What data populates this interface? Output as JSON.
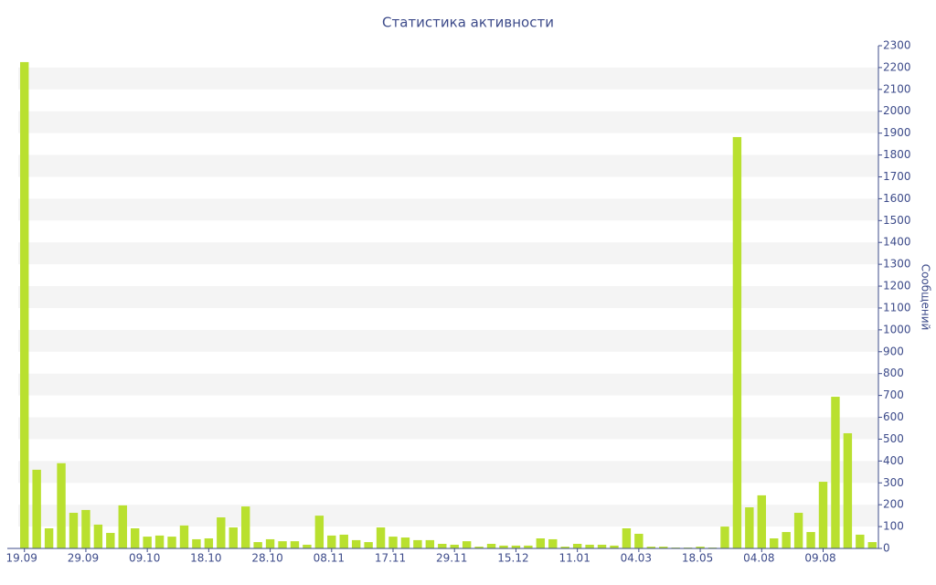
{
  "chart_data": {
    "type": "bar",
    "title": "Статистика активности",
    "ylabel": "Сообщений",
    "categories": [
      "19.09",
      null,
      null,
      null,
      null,
      "29.09",
      null,
      null,
      null,
      null,
      "09.10",
      null,
      null,
      null,
      null,
      "18.10",
      null,
      null,
      null,
      null,
      "28.10",
      null,
      null,
      null,
      null,
      "08.11",
      null,
      null,
      null,
      null,
      "17.11",
      null,
      null,
      null,
      null,
      "29.11",
      null,
      null,
      null,
      null,
      "15.12",
      null,
      null,
      null,
      null,
      "11.01",
      null,
      null,
      null,
      null,
      "04.03",
      null,
      null,
      null,
      null,
      "18.05",
      null,
      null,
      null,
      null,
      "04.08",
      null,
      null,
      null,
      null,
      "09.08",
      null,
      null,
      null,
      null
    ],
    "values": [
      2225,
      360,
      92,
      390,
      163,
      176,
      109,
      71,
      197,
      92,
      54,
      59,
      54,
      105,
      42,
      46,
      142,
      96,
      192,
      29,
      42,
      33,
      33,
      17,
      150,
      59,
      63,
      38,
      29,
      96,
      54,
      50,
      38,
      38,
      21,
      17,
      33,
      8,
      21,
      13,
      13,
      13,
      46,
      42,
      8,
      21,
      17,
      17,
      13,
      92,
      67,
      8,
      8,
      4,
      4,
      8,
      4,
      100,
      1882,
      188,
      243,
      46,
      75,
      163,
      75,
      305,
      694,
      527,
      63,
      29
    ],
    "color": "#b9e02f",
    "ylim": [
      0,
      2300
    ],
    "yticks": [
      0,
      100,
      200,
      300,
      400,
      500,
      600,
      700,
      800,
      900,
      1000,
      1100,
      1200,
      1300,
      1400,
      1500,
      1600,
      1700,
      1800,
      1900,
      2000,
      2100,
      2200,
      2300
    ],
    "grid": true,
    "y_axis_side": "right"
  }
}
